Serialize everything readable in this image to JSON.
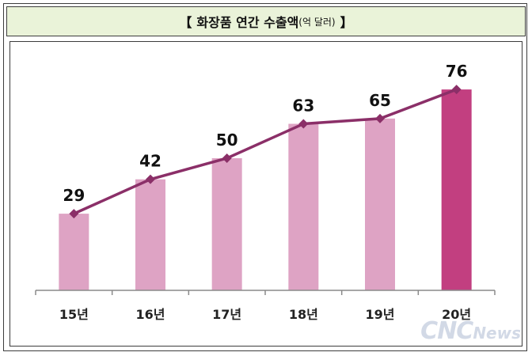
{
  "header": {
    "bracket_open": "【",
    "title": "화장품 연간 수출액",
    "unit": "(억 달러)",
    "bracket_close": "】"
  },
  "watermark": {
    "part1": "CNC",
    "part2": "News"
  },
  "colors": {
    "bar_light": "#dea3c4",
    "bar_highlight": "#c23f80",
    "line": "#8b2f68",
    "header_bg": "#eaf3d9"
  },
  "chart_data": {
    "type": "bar",
    "title": "화장품 연간 수출액(억 달러)",
    "categories": [
      "15년",
      "16년",
      "17년",
      "18년",
      "19년",
      "20년"
    ],
    "values": [
      29,
      42,
      50,
      63,
      65,
      76
    ],
    "overlay_line": true,
    "highlight_category": "20년",
    "ylim": [
      0,
      88
    ],
    "grid": false,
    "xlabel": "",
    "ylabel": ""
  }
}
